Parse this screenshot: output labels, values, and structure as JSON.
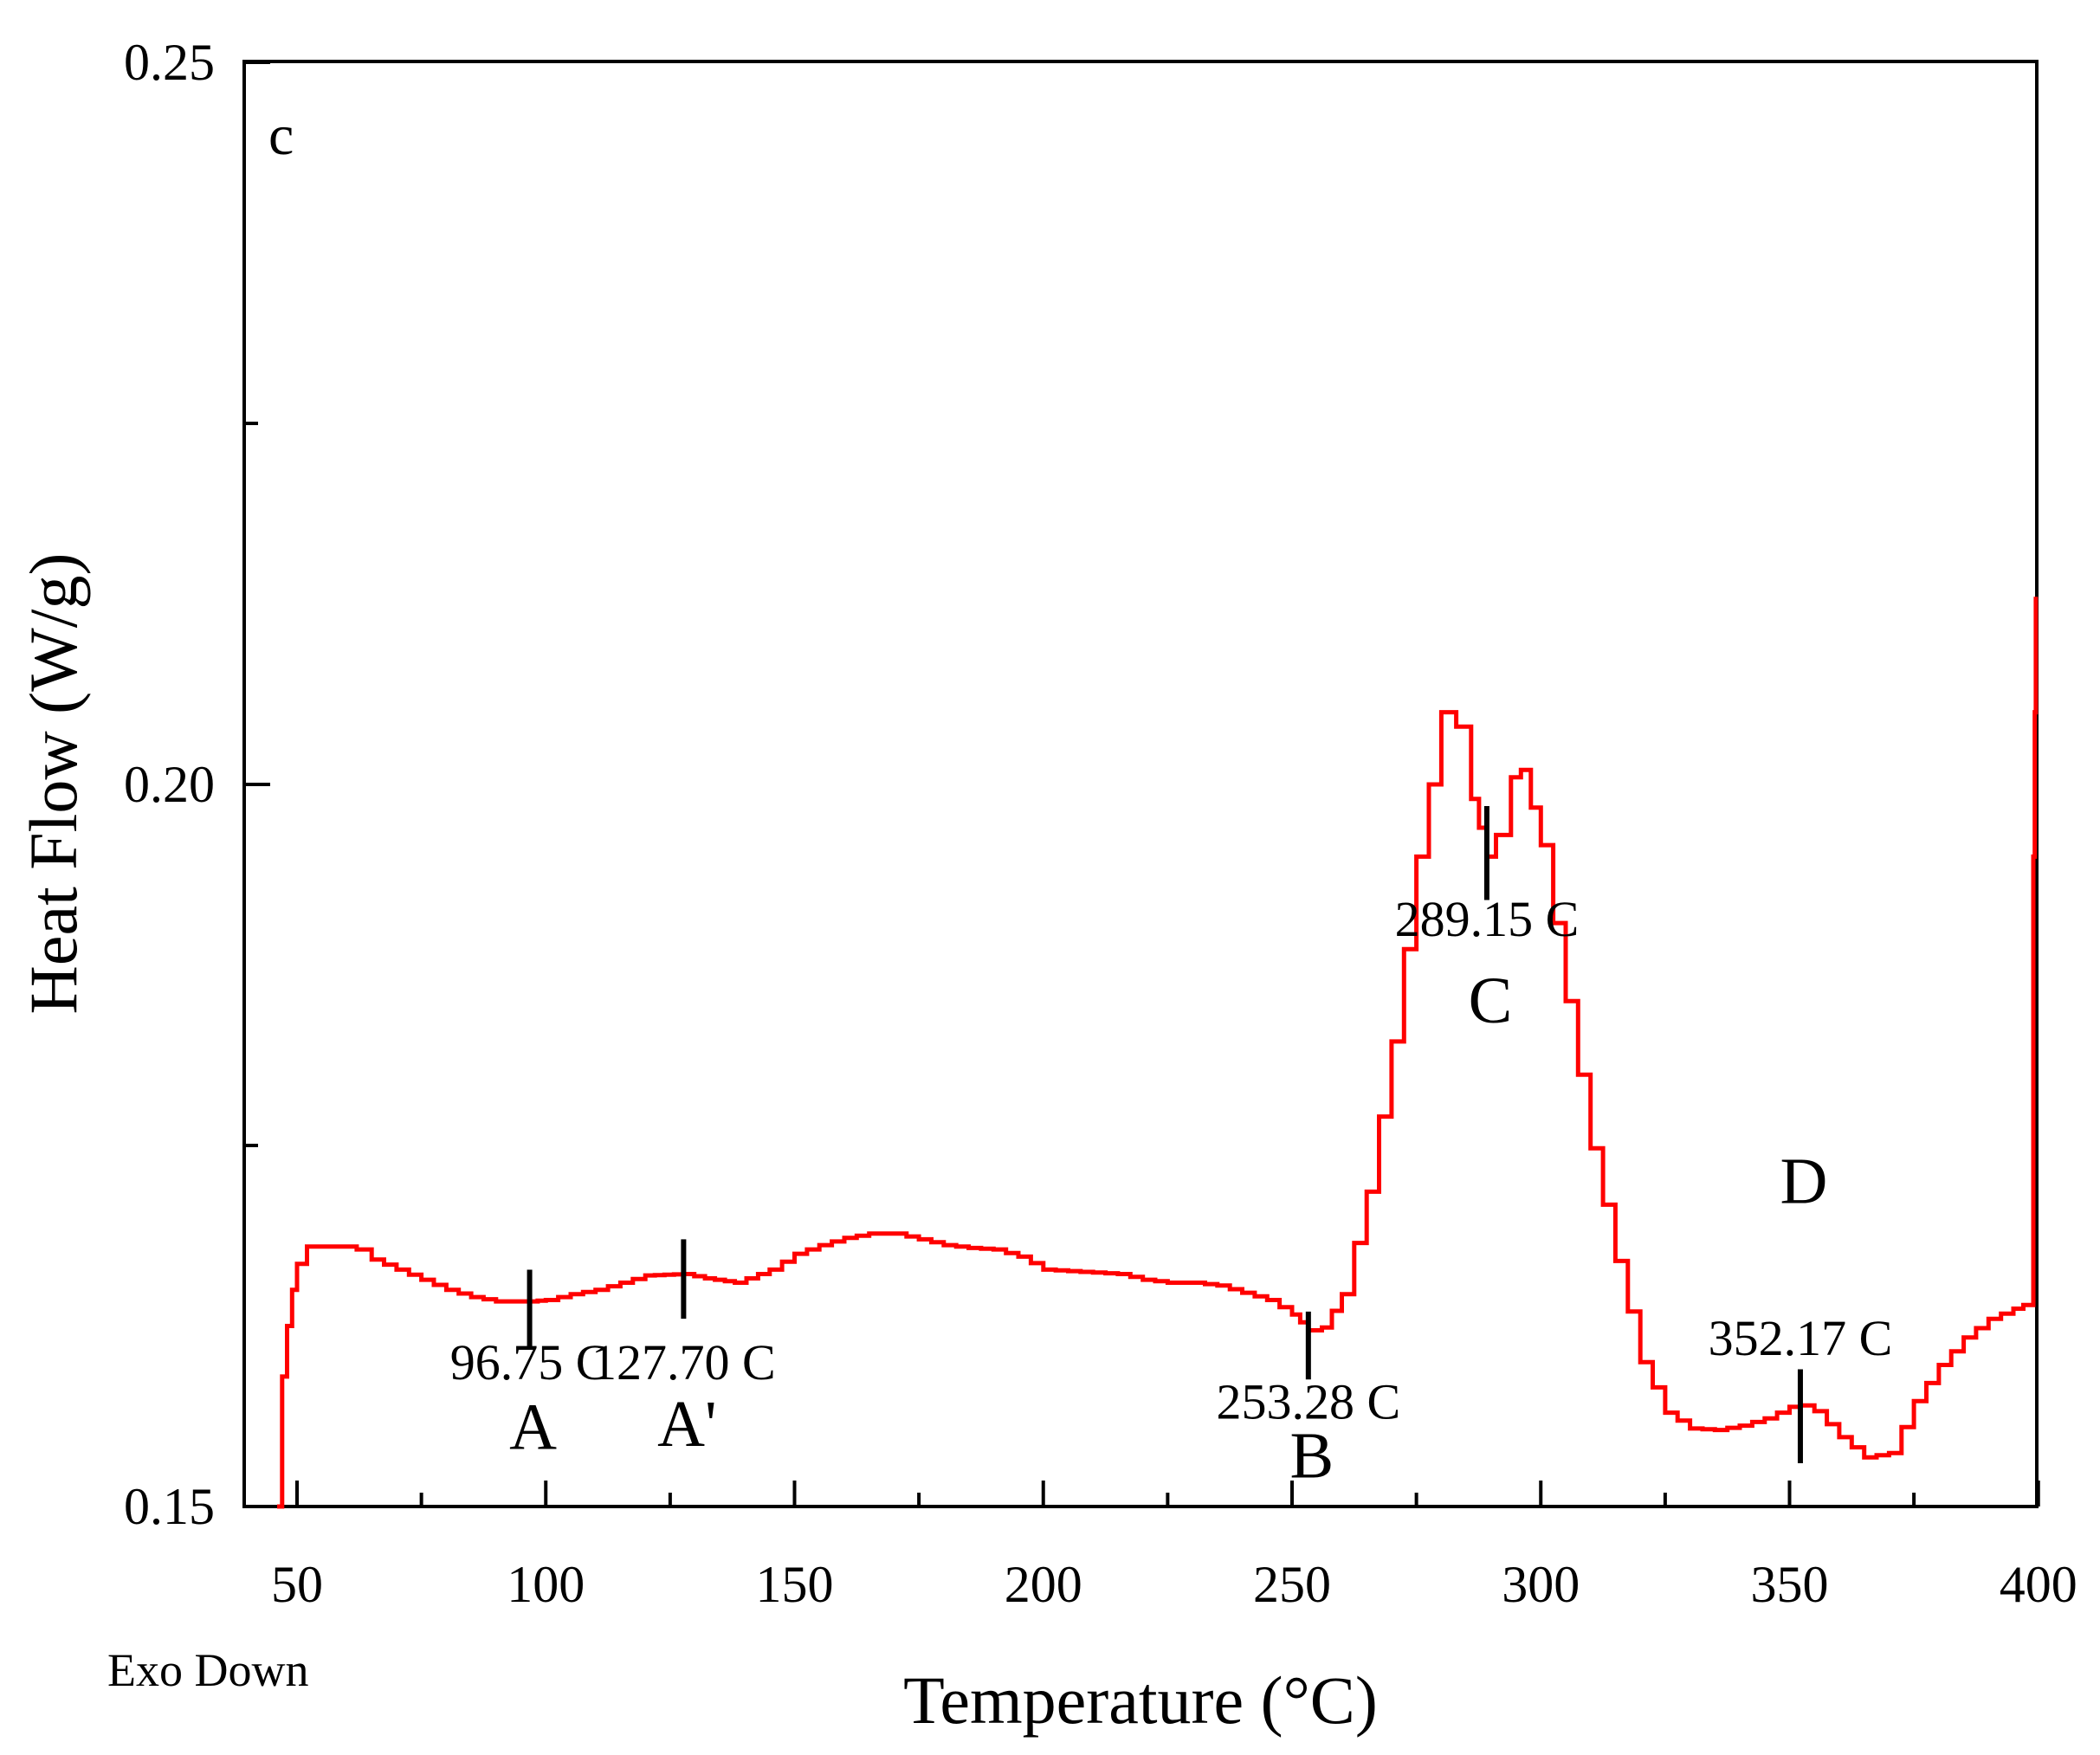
{
  "chart_data": {
    "type": "line",
    "panel_label": "c",
    "xlabel": "Temperature (°C)",
    "ylabel": "Heat Flow (W/g)",
    "xlim": [
      43,
      400
    ],
    "ylim": [
      0.15,
      0.25
    ],
    "x_ticks": [
      50,
      100,
      150,
      200,
      250,
      300,
      350,
      400
    ],
    "x_tick_labels": [
      "50",
      "100",
      "150",
      "200",
      "250",
      "300",
      "350",
      "400"
    ],
    "y_ticks": [
      0.15,
      0.2,
      0.25
    ],
    "y_tick_labels": [
      "0.15",
      "0.20",
      "0.25"
    ],
    "y_minor_ticks": [
      0.175,
      0.225
    ],
    "note": "Exo Down",
    "line_color": "#ff0000",
    "series": [
      {
        "name": "Heat Flow",
        "points": [
          [
            46,
            0.15
          ],
          [
            47,
            0.159
          ],
          [
            48,
            0.1625
          ],
          [
            49,
            0.165
          ],
          [
            50,
            0.1668
          ],
          [
            52,
            0.168
          ],
          [
            55,
            0.168
          ],
          [
            60,
            0.168
          ],
          [
            62,
            0.1678
          ],
          [
            65,
            0.1671
          ],
          [
            70,
            0.1664
          ],
          [
            75,
            0.1657
          ],
          [
            80,
            0.165
          ],
          [
            85,
            0.1645
          ],
          [
            90,
            0.1642
          ],
          [
            96.75,
            0.1642
          ],
          [
            100,
            0.1643
          ],
          [
            105,
            0.1647
          ],
          [
            110,
            0.165
          ],
          [
            115,
            0.1655
          ],
          [
            120,
            0.166
          ],
          [
            127.7,
            0.1661
          ],
          [
            132,
            0.1658
          ],
          [
            138,
            0.1655
          ],
          [
            145,
            0.1664
          ],
          [
            150,
            0.1675
          ],
          [
            155,
            0.1681
          ],
          [
            160,
            0.1686
          ],
          [
            165,
            0.1689
          ],
          [
            170,
            0.1689
          ],
          [
            175,
            0.1685
          ],
          [
            180,
            0.1681
          ],
          [
            185,
            0.1679
          ],
          [
            190,
            0.1678
          ],
          [
            195,
            0.1673
          ],
          [
            200,
            0.1664
          ],
          [
            205,
            0.1663
          ],
          [
            210,
            0.1662
          ],
          [
            215,
            0.1661
          ],
          [
            220,
            0.1657
          ],
          [
            225,
            0.1655
          ],
          [
            230,
            0.1655
          ],
          [
            235,
            0.1653
          ],
          [
            240,
            0.1648
          ],
          [
            245,
            0.1643
          ],
          [
            250,
            0.1633
          ],
          [
            253.28,
            0.1622
          ],
          [
            256,
            0.1624
          ],
          [
            260,
            0.1647
          ],
          [
            265,
            0.1718
          ],
          [
            270,
            0.1822
          ],
          [
            275,
            0.195
          ],
          [
            280,
            0.205
          ],
          [
            283,
            0.204
          ],
          [
            286,
            0.199
          ],
          [
            289.15,
            0.195
          ],
          [
            291,
            0.1965
          ],
          [
            294,
            0.2005
          ],
          [
            296,
            0.201
          ],
          [
            300,
            0.1958
          ],
          [
            305,
            0.185
          ],
          [
            310,
            0.1748
          ],
          [
            315,
            0.167
          ],
          [
            320,
            0.16
          ],
          [
            325,
            0.1565
          ],
          [
            330,
            0.1554
          ],
          [
            335,
            0.1553
          ],
          [
            340,
            0.1556
          ],
          [
            345,
            0.1561
          ],
          [
            350,
            0.1569
          ],
          [
            352.17,
            0.157
          ],
          [
            355,
            0.1566
          ],
          [
            360,
            0.1548
          ],
          [
            365,
            0.1534
          ],
          [
            370,
            0.1537
          ],
          [
            375,
            0.1573
          ],
          [
            380,
            0.1598
          ],
          [
            385,
            0.1617
          ],
          [
            390,
            0.163
          ],
          [
            395,
            0.1637
          ],
          [
            399,
            0.1642
          ],
          [
            399,
            0.195
          ],
          [
            399.3,
            0.205
          ],
          [
            399.5,
            0.213
          ]
        ]
      }
    ],
    "markers": [
      {
        "x": 96.75,
        "y_from": 0.161,
        "y_to": 0.1664,
        "value_label": "96.75 C",
        "letter": "A",
        "value_label_y": 0.1588,
        "letter_y": 0.154
      },
      {
        "x": 127.7,
        "y_from": 0.163,
        "y_to": 0.1685,
        "value_label": "127.70 C",
        "letter": "A'",
        "value_label_y": 0.1588,
        "letter_y": 0.1542
      },
      {
        "x": 253.28,
        "y_from": 0.1588,
        "y_to": 0.1635,
        "value_label": "253.28 C",
        "letter": "B",
        "value_label_y": 0.1561,
        "letter_y": 0.152
      },
      {
        "x": 289.15,
        "y_from": 0.192,
        "y_to": 0.1985,
        "value_label": "289.15 C",
        "letter": "C",
        "value_label_y": 0.1895,
        "letter_y": 0.1835
      },
      {
        "x": 352.17,
        "y_from": 0.153,
        "y_to": 0.1595,
        "value_label": "352.17 C",
        "letter": "D",
        "value_label_y": 0.1605,
        "letter_y": 0.171
      }
    ]
  }
}
